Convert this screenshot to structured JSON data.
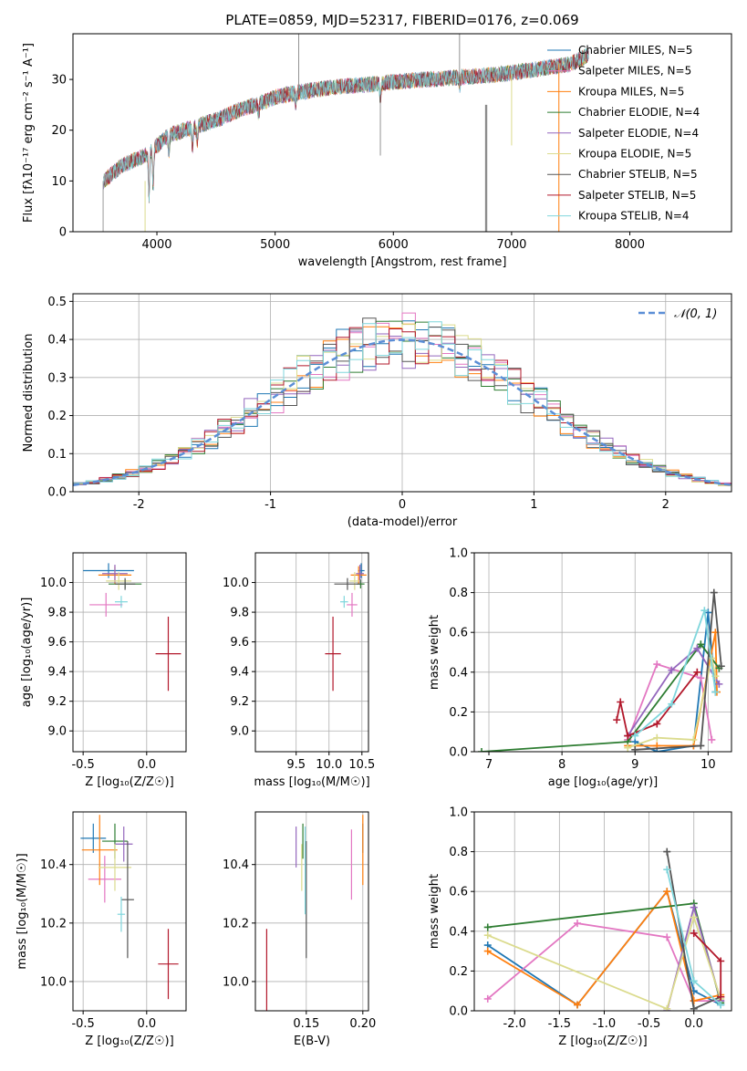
{
  "chart_data": [
    {
      "id": "spectrum",
      "type": "line",
      "title": "PLATE=0859, MJD=52317, FIBERID=0176, z=0.069",
      "xlabel": "wavelength [Angstrom, rest frame]",
      "ylabel": "Flux [fλ10⁻¹⁷ erg cm⁻² s⁻¹ A⁻¹]",
      "xlim": [
        3290,
        8860
      ],
      "ylim": [
        0,
        39
      ],
      "xticks": [
        4000,
        5000,
        6000,
        7000,
        8000
      ],
      "yticks": [
        0,
        10,
        20,
        30
      ],
      "legend_position": "right",
      "series": [
        {
          "name": "Chabrier MILES, N_SSP=5",
          "color": "#1f77b4"
        },
        {
          "name": "Salpeter MILES, N_SSP=5",
          "color": "#e377c2"
        },
        {
          "name": "Kroupa MILES, N_SSP=5",
          "color": "#ff7f0e"
        },
        {
          "name": "Chabrier ELODIE, N_SSP=4",
          "color": "#2e7d32"
        },
        {
          "name": "Salpeter ELODIE, N_SSP=4",
          "color": "#9467bd"
        },
        {
          "name": "Kroupa ELODIE, N_SSP=5",
          "color": "#dbdb8d"
        },
        {
          "name": "Chabrier STELIB, N_SSP=5",
          "color": "#555555"
        },
        {
          "name": "Salpeter STELIB, N_SSP=5",
          "color": "#b2182b"
        },
        {
          "name": "Kroupa STELIB, N_SSP=4",
          "color": "#7fd6dc"
        }
      ],
      "continuum": [
        [
          3550,
          10
        ],
        [
          3700,
          13
        ],
        [
          3900,
          15
        ],
        [
          4000,
          17
        ],
        [
          4100,
          19
        ],
        [
          4300,
          20.5
        ],
        [
          4500,
          22
        ],
        [
          4700,
          24
        ],
        [
          4900,
          25.5
        ],
        [
          5000,
          26.5
        ],
        [
          5200,
          27.5
        ],
        [
          5500,
          28.5
        ],
        [
          5800,
          29
        ],
        [
          6000,
          29.5
        ],
        [
          6300,
          30
        ],
        [
          6600,
          30.5
        ],
        [
          6900,
          31
        ],
        [
          7200,
          32
        ],
        [
          7500,
          33
        ],
        [
          7700,
          35.5
        ]
      ]
    },
    {
      "id": "residuals",
      "type": "histogram",
      "xlabel": "(data-model)/error",
      "ylabel": "Normed distribution",
      "xlim": [
        -2.5,
        2.5
      ],
      "ylim": [
        0,
        0.52
      ],
      "xticks": [
        -2,
        -1,
        0,
        1,
        2
      ],
      "yticks": [
        0.0,
        0.1,
        0.2,
        0.3,
        0.4,
        0.5
      ],
      "reference_label": "𝒩(0, 1)",
      "reference_color": "#5b8ed6"
    },
    {
      "id": "age-vs-Z",
      "type": "scatter",
      "xlabel": "Z [log₁₀(Z/Z☉)]",
      "ylabel": "age  [log₁₀(age/yr)]",
      "xlim": [
        -0.58,
        0.31
      ],
      "ylim": [
        8.86,
        10.2
      ],
      "xticks": [
        -0.5,
        0.0
      ],
      "yticks": [
        9.0,
        9.2,
        9.4,
        9.6,
        9.8,
        10.0
      ],
      "points": [
        {
          "x": -0.3,
          "y": 10.08,
          "xerr": 0.2,
          "yerr": 0.05,
          "color": "#1f77b4"
        },
        {
          "x": -0.32,
          "y": 9.85,
          "xerr": 0.13,
          "yerr": 0.08,
          "color": "#e377c2"
        },
        {
          "x": -0.25,
          "y": 10.05,
          "xerr": 0.13,
          "yerr": 0.06,
          "color": "#ff7f0e"
        },
        {
          "x": -0.17,
          "y": 9.99,
          "xerr": 0.13,
          "yerr": 0.03,
          "color": "#2e7d32"
        },
        {
          "x": -0.25,
          "y": 10.06,
          "xerr": 0.1,
          "yerr": 0.06,
          "color": "#9467bd"
        },
        {
          "x": -0.22,
          "y": 10.01,
          "xerr": 0.1,
          "yerr": 0.06,
          "color": "#dbdb8d"
        },
        {
          "x": -0.17,
          "y": 9.99,
          "xerr": 0.08,
          "yerr": 0.04,
          "color": "#555555"
        },
        {
          "x": 0.17,
          "y": 9.52,
          "xerr": 0.1,
          "yerr": 0.25,
          "color": "#b2182b"
        },
        {
          "x": -0.2,
          "y": 9.87,
          "xerr": 0.05,
          "yerr": 0.04,
          "color": "#7fd6dc"
        }
      ]
    },
    {
      "id": "age-vs-mass",
      "type": "scatter",
      "xlabel": "mass [log₁₀(M/M☉)]",
      "ylabel": "",
      "xlim": [
        8.88,
        10.6
      ],
      "ylim": [
        8.86,
        10.2
      ],
      "xticks": [
        9.5,
        10.0,
        10.5
      ],
      "yticks": [
        9.0,
        9.2,
        9.4,
        9.6,
        9.8,
        10.0
      ],
      "points": [
        {
          "x": 10.49,
          "y": 10.08,
          "xerr": 0.05,
          "yerr": 0.05,
          "color": "#1f77b4"
        },
        {
          "x": 10.35,
          "y": 9.85,
          "xerr": 0.08,
          "yerr": 0.08,
          "color": "#e377c2"
        },
        {
          "x": 10.45,
          "y": 10.05,
          "xerr": 0.12,
          "yerr": 0.06,
          "color": "#ff7f0e"
        },
        {
          "x": 10.48,
          "y": 9.99,
          "xerr": 0.06,
          "yerr": 0.03,
          "color": "#2e7d32"
        },
        {
          "x": 10.47,
          "y": 10.06,
          "xerr": 0.06,
          "yerr": 0.06,
          "color": "#9467bd"
        },
        {
          "x": 10.39,
          "y": 10.01,
          "xerr": 0.08,
          "yerr": 0.06,
          "color": "#dbdb8d"
        },
        {
          "x": 10.28,
          "y": 9.99,
          "xerr": 0.2,
          "yerr": 0.04,
          "color": "#555555"
        },
        {
          "x": 10.06,
          "y": 9.52,
          "xerr": 0.12,
          "yerr": 0.25,
          "color": "#b2182b"
        },
        {
          "x": 10.23,
          "y": 9.87,
          "xerr": 0.06,
          "yerr": 0.04,
          "color": "#7fd6dc"
        }
      ]
    },
    {
      "id": "weight-vs-age",
      "type": "line",
      "xlabel": "age  [log₁₀(age/yr)]",
      "ylabel": "mass weight",
      "xlim": [
        6.8,
        10.32
      ],
      "ylim": [
        0,
        1.0
      ],
      "xticks": [
        7,
        8,
        9,
        10
      ],
      "yticks": [
        0.0,
        0.2,
        0.4,
        0.6,
        0.8,
        1.0
      ],
      "series": [
        {
          "color": "#1f77b4",
          "points": [
            [
              9.0,
              0.05
            ],
            [
              9.3,
              0.0
            ],
            [
              9.8,
              0.03
            ],
            [
              10.0,
              0.7
            ],
            [
              10.1,
              0.3
            ]
          ]
        },
        {
          "color": "#e377c2",
          "points": [
            [
              8.9,
              0.06
            ],
            [
              9.3,
              0.44
            ],
            [
              9.9,
              0.37
            ],
            [
              10.05,
              0.06
            ]
          ]
        },
        {
          "color": "#ff7f0e",
          "points": [
            [
              8.9,
              0.03
            ],
            [
              9.3,
              0.03
            ],
            [
              9.8,
              0.03
            ],
            [
              10.1,
              0.6
            ],
            [
              10.12,
              0.3
            ]
          ]
        },
        {
          "color": "#2e7d32",
          "points": [
            [
              6.9,
              0.0
            ],
            [
              8.9,
              0.05
            ],
            [
              9.9,
              0.54
            ],
            [
              10.15,
              0.42
            ]
          ]
        },
        {
          "color": "#9467bd",
          "points": [
            [
              8.9,
              0.08
            ],
            [
              9.5,
              0.41
            ],
            [
              9.85,
              0.52
            ],
            [
              10.15,
              0.34
            ]
          ]
        },
        {
          "color": "#dbdb8d",
          "points": [
            [
              8.9,
              0.02
            ],
            [
              9.3,
              0.07
            ],
            [
              9.8,
              0.06
            ],
            [
              10.05,
              0.47
            ],
            [
              10.1,
              0.38
            ]
          ]
        },
        {
          "color": "#555555",
          "points": [
            [
              9.0,
              0.01
            ],
            [
              9.9,
              0.03
            ],
            [
              10.08,
              0.8
            ],
            [
              10.18,
              0.43
            ]
          ]
        },
        {
          "color": "#b2182b",
          "points": [
            [
              8.75,
              0.16
            ],
            [
              8.8,
              0.25
            ],
            [
              8.9,
              0.08
            ],
            [
              9.3,
              0.14
            ],
            [
              9.85,
              0.4
            ]
          ]
        },
        {
          "color": "#7fd6dc",
          "points": [
            [
              9.0,
              0.08
            ],
            [
              9.5,
              0.24
            ],
            [
              9.95,
              0.71
            ],
            [
              10.1,
              0.3
            ]
          ]
        }
      ]
    },
    {
      "id": "mass-vs-Z",
      "type": "scatter",
      "xlabel": "Z [log₁₀(Z/Z☉)]",
      "ylabel": "mass [log₁₀(M/M☉)]",
      "xlim": [
        -0.58,
        0.31
      ],
      "ylim": [
        9.9,
        10.58
      ],
      "xticks": [
        -0.5,
        0.0
      ],
      "yticks": [
        10.0,
        10.2,
        10.4
      ],
      "points": [
        {
          "x": -0.42,
          "y": 10.49,
          "xerr": 0.1,
          "yerr": 0.05,
          "color": "#1f77b4"
        },
        {
          "x": -0.33,
          "y": 10.35,
          "xerr": 0.13,
          "yerr": 0.08,
          "color": "#e377c2"
        },
        {
          "x": -0.37,
          "y": 10.45,
          "xerr": 0.14,
          "yerr": 0.12,
          "color": "#ff7f0e"
        },
        {
          "x": -0.25,
          "y": 10.48,
          "xerr": 0.1,
          "yerr": 0.06,
          "color": "#2e7d32"
        },
        {
          "x": -0.18,
          "y": 10.47,
          "xerr": 0.07,
          "yerr": 0.06,
          "color": "#9467bd"
        },
        {
          "x": -0.25,
          "y": 10.39,
          "xerr": 0.13,
          "yerr": 0.08,
          "color": "#dbdb8d"
        },
        {
          "x": -0.15,
          "y": 10.28,
          "xerr": 0.05,
          "yerr": 0.2,
          "color": "#555555"
        },
        {
          "x": 0.17,
          "y": 10.06,
          "xerr": 0.08,
          "yerr": 0.12,
          "color": "#b2182b"
        },
        {
          "x": -0.2,
          "y": 10.23,
          "xerr": 0.03,
          "yerr": 0.06,
          "color": "#7fd6dc"
        }
      ]
    },
    {
      "id": "mass-vs-ebv",
      "type": "scatter",
      "xlabel": "E(B-V)",
      "ylabel": "",
      "xlim": [
        0.105,
        0.205
      ],
      "ylim": [
        9.9,
        10.58
      ],
      "xticks": [
        0.15,
        0.2
      ],
      "yticks": [
        10.0,
        10.2,
        10.4
      ],
      "points": [
        {
          "x": 0.2,
          "y": 10.49,
          "xerr": 0,
          "yerr": 0.05,
          "color": "#1f77b4"
        },
        {
          "x": 0.19,
          "y": 10.4,
          "xerr": 0,
          "yerr": 0.12,
          "color": "#e377c2"
        },
        {
          "x": 0.2,
          "y": 10.45,
          "xerr": 0,
          "yerr": 0.12,
          "color": "#ff7f0e"
        },
        {
          "x": 0.147,
          "y": 10.48,
          "xerr": 0,
          "yerr": 0.06,
          "color": "#2e7d32"
        },
        {
          "x": 0.141,
          "y": 10.46,
          "xerr": 0,
          "yerr": 0.07,
          "color": "#9467bd"
        },
        {
          "x": 0.146,
          "y": 10.39,
          "xerr": 0,
          "yerr": 0.08,
          "color": "#dbdb8d"
        },
        {
          "x": 0.15,
          "y": 10.28,
          "xerr": 0,
          "yerr": 0.2,
          "color": "#555555"
        },
        {
          "x": 0.115,
          "y": 10.04,
          "xerr": 0,
          "yerr": 0.14,
          "color": "#b2182b"
        },
        {
          "x": 0.149,
          "y": 10.38,
          "xerr": 0,
          "yerr": 0.15,
          "color": "#7fd6dc"
        }
      ]
    },
    {
      "id": "weight-vs-Z",
      "type": "line",
      "xlabel": "Z [log₁₀(Z/Z☉)]",
      "ylabel": "mass weight",
      "xlim": [
        -2.45,
        0.42
      ],
      "ylim": [
        0,
        1.0
      ],
      "xticks": [
        -2.0,
        -1.5,
        -1.0,
        -0.5,
        0.0
      ],
      "yticks": [
        0.0,
        0.2,
        0.4,
        0.6,
        0.8,
        1.0
      ],
      "series": [
        {
          "color": "#1f77b4",
          "points": [
            [
              -2.3,
              0.33
            ],
            [
              -1.3,
              0.03
            ],
            [
              -0.3,
              0.6
            ],
            [
              0.0,
              0.1
            ],
            [
              0.3,
              0.03
            ]
          ]
        },
        {
          "color": "#e377c2",
          "points": [
            [
              -2.3,
              0.06
            ],
            [
              -1.3,
              0.44
            ],
            [
              -0.3,
              0.37
            ],
            [
              0.0,
              0.05
            ],
            [
              0.3,
              0.05
            ]
          ]
        },
        {
          "color": "#ff7f0e",
          "points": [
            [
              -2.3,
              0.3
            ],
            [
              -1.3,
              0.03
            ],
            [
              -0.3,
              0.6
            ],
            [
              0.0,
              0.05
            ],
            [
              0.3,
              0.08
            ]
          ]
        },
        {
          "color": "#2e7d32",
          "points": [
            [
              -2.3,
              0.42
            ],
            [
              0.0,
              0.54
            ],
            [
              0.3,
              0.04
            ]
          ]
        },
        {
          "color": "#9467bd",
          "points": [
            [
              -0.3,
              0.0
            ],
            [
              0.0,
              0.52
            ],
            [
              0.3,
              0.05
            ]
          ]
        },
        {
          "color": "#dbdb8d",
          "points": [
            [
              -2.3,
              0.38
            ],
            [
              -0.3,
              0.01
            ],
            [
              0.0,
              0.47
            ],
            [
              0.3,
              0.06
            ]
          ]
        },
        {
          "color": "#555555",
          "points": [
            [
              -0.3,
              0.8
            ],
            [
              0.0,
              0.01
            ],
            [
              0.3,
              0.07
            ]
          ]
        },
        {
          "color": "#b2182b",
          "points": [
            [
              0.0,
              0.39
            ],
            [
              0.3,
              0.25
            ],
            [
              0.3,
              0.07
            ]
          ]
        },
        {
          "color": "#7fd6dc",
          "points": [
            [
              -0.3,
              0.71
            ],
            [
              0.0,
              0.15
            ],
            [
              0.3,
              0.03
            ]
          ]
        }
      ]
    }
  ]
}
